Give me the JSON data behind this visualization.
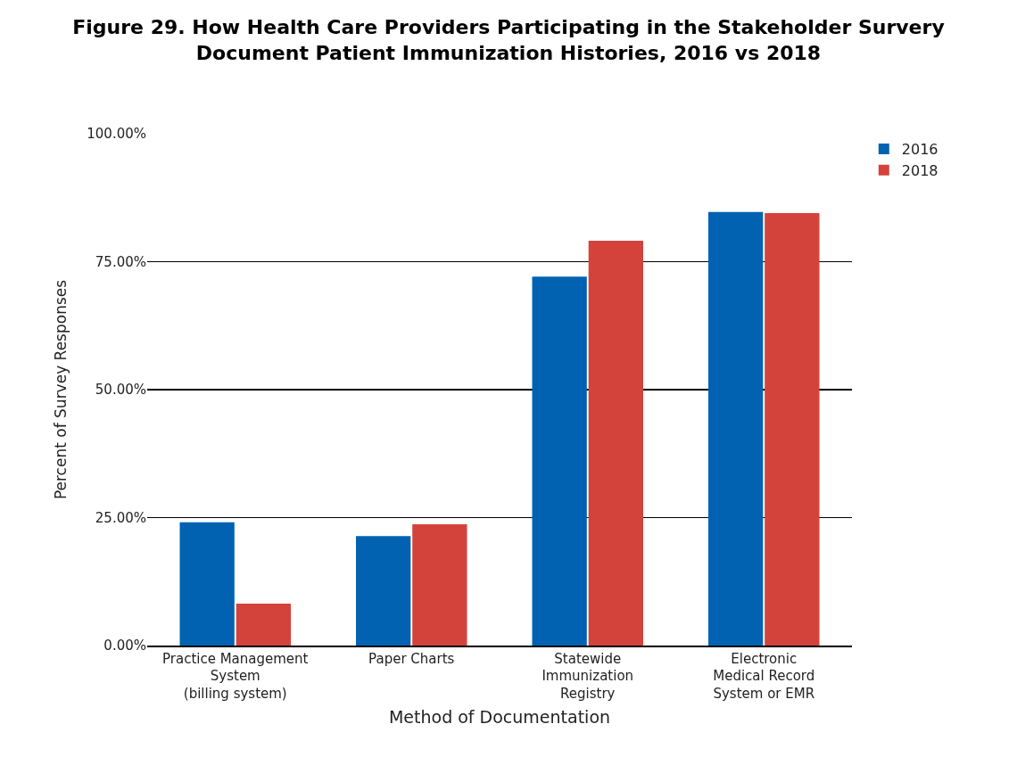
{
  "chart_data": {
    "type": "bar",
    "title": "Figure 29. How Health Care Providers Participating in the Stakeholder Survery\nDocument Patient Immunization Histories, 2016 vs 2018",
    "xlabel": "Method of Documentation",
    "ylabel": "Percent of Survey Responses",
    "categories": [
      "Practice Management\nSystem\n(billing system)",
      "Paper Charts",
      "Statewide\nImmunization\nRegistry",
      "Electronic\nMedical Record\nSystem or EMR"
    ],
    "series": [
      {
        "name": "2016",
        "color": "#0062b1",
        "values": [
          24.1,
          21.4,
          72.1,
          84.7
        ]
      },
      {
        "name": "2018",
        "color": "#d3433b",
        "values": [
          8.2,
          23.7,
          79.1,
          84.5
        ]
      }
    ],
    "ylim": [
      0,
      100
    ],
    "yticks": [
      {
        "value": 0,
        "label": "0.00%"
      },
      {
        "value": 25,
        "label": "25.00%"
      },
      {
        "value": 50,
        "label": "50.00%"
      },
      {
        "value": 75,
        "label": "75.00%"
      },
      {
        "value": 100,
        "label": "100.00%"
      }
    ],
    "grid": "y",
    "legend": "top right"
  }
}
